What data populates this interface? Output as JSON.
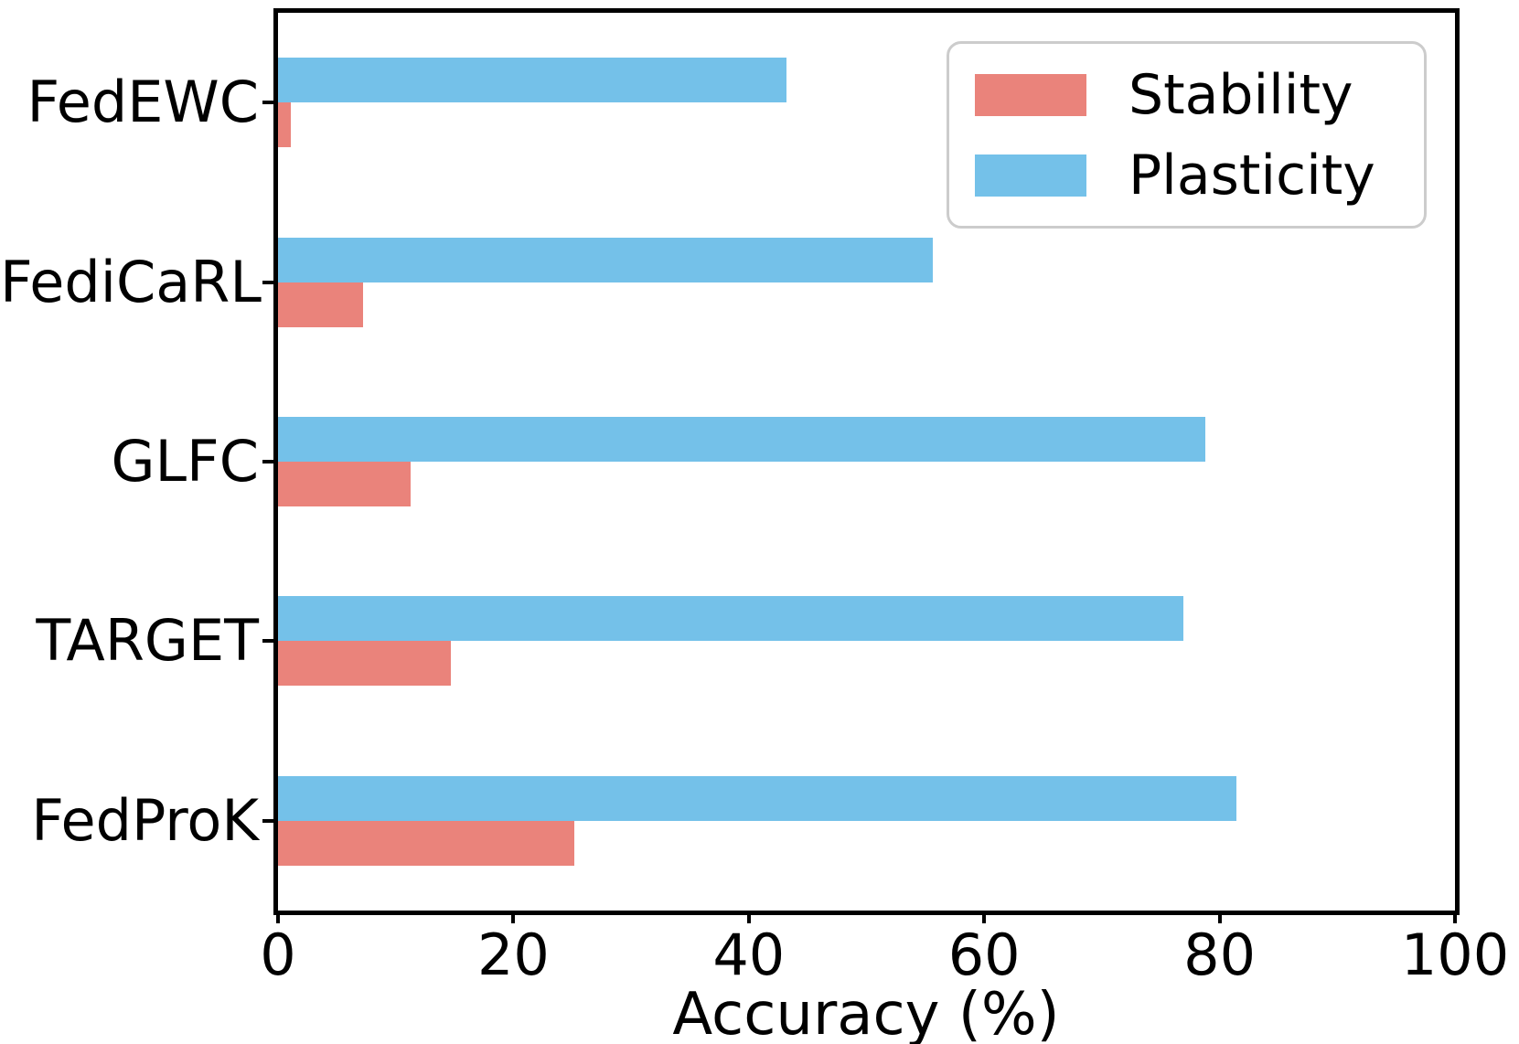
{
  "chart_data": {
    "type": "bar",
    "orientation": "horizontal",
    "title": "",
    "xlabel": "Accuracy (%)",
    "ylabel": "",
    "xlim": [
      0,
      100
    ],
    "xticks": [
      0,
      20,
      40,
      60,
      80,
      100
    ],
    "grid": false,
    "legend_position": "upper right",
    "categories": [
      "FedEWC",
      "FediCaRL",
      "GLFC",
      "TARGET",
      "FedProK"
    ],
    "series": [
      {
        "name": "Stability",
        "color": "#EA837B",
        "values": [
          1.1,
          7.2,
          11.3,
          14.7,
          25.2
        ]
      },
      {
        "name": "Plasticity",
        "color": "#74C1E9",
        "values": [
          43.2,
          55.6,
          78.8,
          76.9,
          81.4
        ]
      }
    ]
  },
  "colors": {
    "axis": "#000000",
    "legend_border": "#cccccc",
    "background": "#ffffff"
  }
}
